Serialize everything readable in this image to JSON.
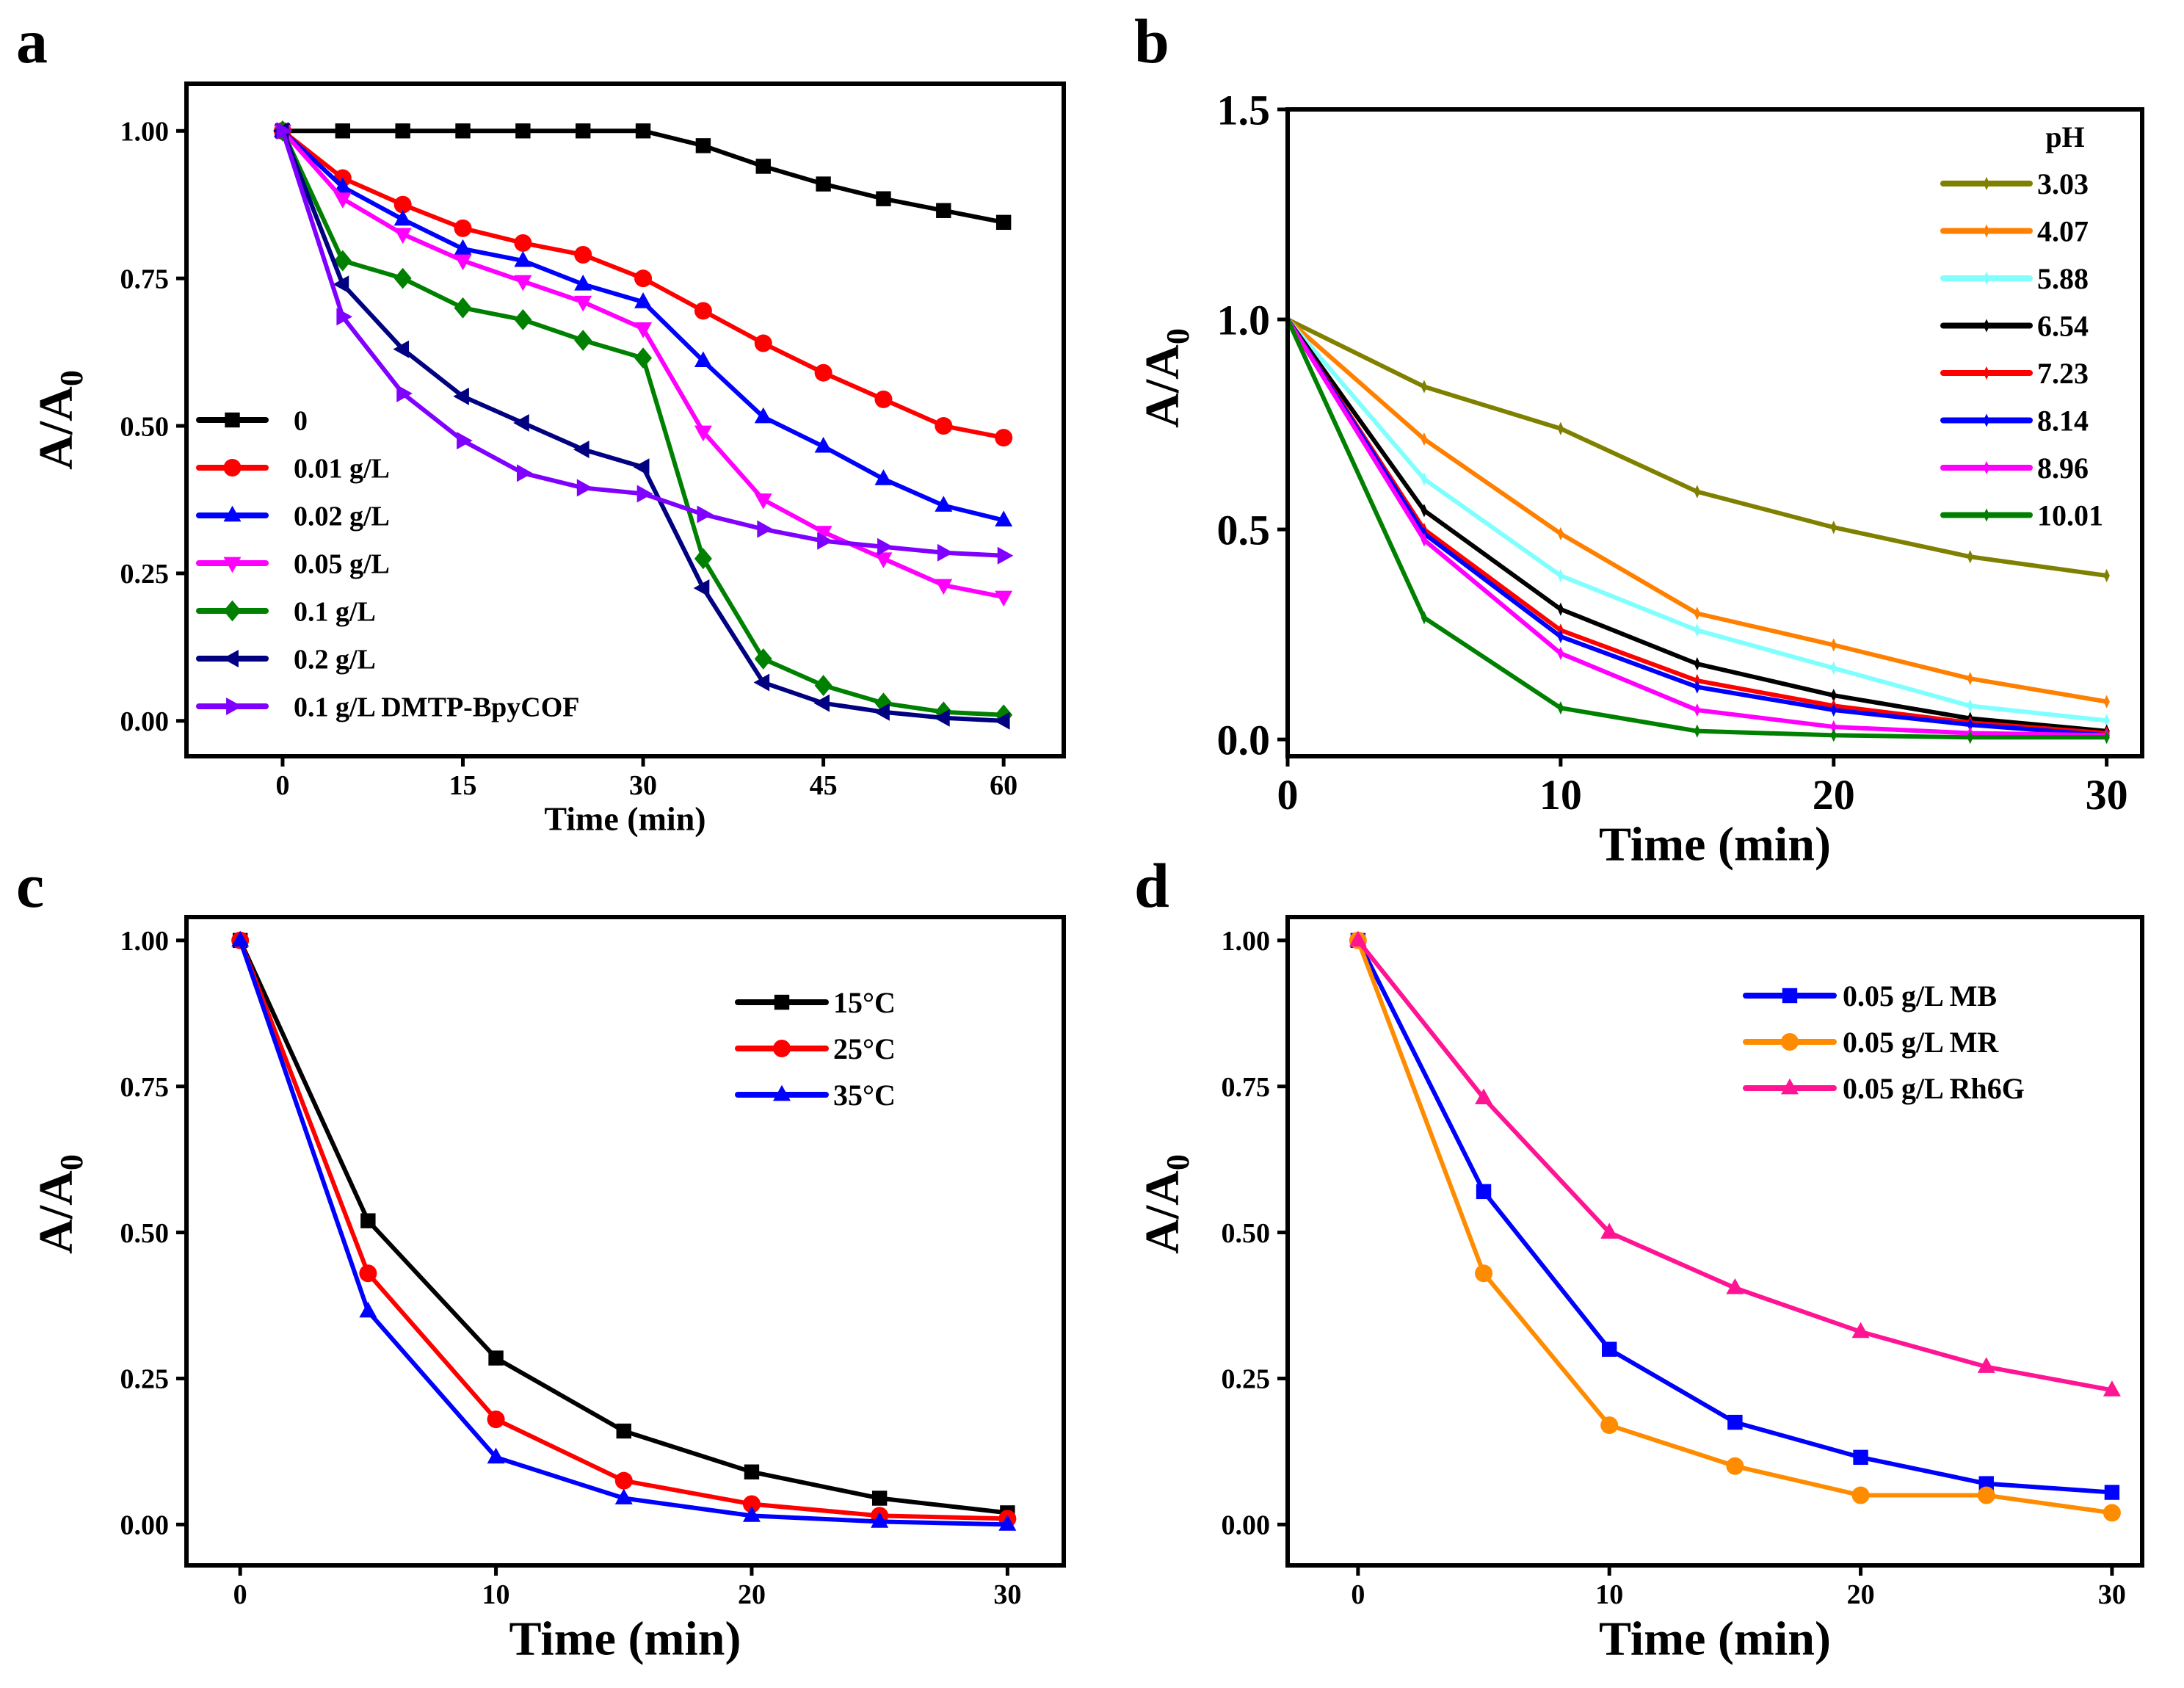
{
  "chart_data": [
    {
      "panel": "a",
      "type": "line",
      "xlabel": "Time (min)",
      "ylabel": "A/A",
      "ylabel_sub": "0",
      "xlim": [
        -8,
        65
      ],
      "ylim": [
        -0.06,
        1.08
      ],
      "xticks": [
        0,
        15,
        30,
        45,
        60
      ],
      "yticks": [
        "0.00",
        "0.25",
        "0.50",
        "0.75",
        "1.00"
      ],
      "legend_placement": "lower-left",
      "x": [
        0,
        5,
        10,
        15,
        20,
        25,
        30,
        35,
        40,
        45,
        50,
        55,
        60
      ],
      "series": [
        {
          "name": "0",
          "color": "#000000",
          "marker": "square",
          "values": [
            1,
            1,
            1,
            1,
            1,
            1,
            1,
            0.975,
            0.94,
            0.91,
            0.885,
            0.865,
            0.845
          ]
        },
        {
          "name": "0.01 g/L",
          "color": "#ff0000",
          "marker": "circle",
          "values": [
            1,
            0.92,
            0.875,
            0.835,
            0.81,
            0.79,
            0.75,
            0.695,
            0.64,
            0.59,
            0.545,
            0.5,
            0.48
          ]
        },
        {
          "name": "0.02 g/L",
          "color": "#0000ff",
          "marker": "triangle-up",
          "values": [
            1,
            0.905,
            0.85,
            0.8,
            0.78,
            0.74,
            0.71,
            0.61,
            0.515,
            0.465,
            0.41,
            0.365,
            0.34
          ]
        },
        {
          "name": "0.05 g/L",
          "color": "#ff00ff",
          "marker": "triangle-down",
          "values": [
            1,
            0.885,
            0.825,
            0.78,
            0.745,
            0.71,
            0.665,
            0.49,
            0.375,
            0.32,
            0.275,
            0.23,
            0.21
          ]
        },
        {
          "name": "0.1 g/L",
          "color": "#008000",
          "marker": "diamond",
          "values": [
            1,
            0.78,
            0.75,
            0.7,
            0.68,
            0.645,
            0.615,
            0.275,
            0.105,
            0.06,
            0.03,
            0.015,
            0.01
          ]
        },
        {
          "name": "0.2 g/L",
          "color": "#000080",
          "marker": "triangle-left",
          "values": [
            1,
            0.74,
            0.63,
            0.55,
            0.505,
            0.46,
            0.43,
            0.225,
            0.065,
            0.03,
            0.015,
            0.005,
            0.0
          ]
        },
        {
          "name": "0.1 g/L DMTP-BpyCOF",
          "color": "#8000ff",
          "marker": "triangle-right",
          "values": [
            1,
            0.685,
            0.555,
            0.475,
            0.42,
            0.395,
            0.385,
            0.35,
            0.325,
            0.305,
            0.295,
            0.285,
            0.28
          ]
        }
      ]
    },
    {
      "panel": "b",
      "type": "line",
      "xlabel": "Time (min)",
      "ylabel": "A/A",
      "ylabel_sub": "0",
      "xlim": [
        0,
        31.3
      ],
      "ylim": [
        -0.04,
        1.5
      ],
      "xticks": [
        0,
        10,
        20,
        30
      ],
      "yticks": [
        "0.0",
        "0.5",
        "1.0",
        "1.5"
      ],
      "legend_title": "pH",
      "legend_placement": "top-right",
      "x": [
        0,
        5,
        10,
        15,
        20,
        25,
        30
      ],
      "series": [
        {
          "name": "3.03",
          "color": "#808000",
          "marker": "tick",
          "values": [
            1,
            0.84,
            0.74,
            0.59,
            0.505,
            0.435,
            0.39
          ]
        },
        {
          "name": "4.07",
          "color": "#ff8000",
          "marker": "tick",
          "values": [
            1,
            0.715,
            0.49,
            0.3,
            0.225,
            0.145,
            0.09
          ]
        },
        {
          "name": "5.88",
          "color": "#80ffff",
          "marker": "tick",
          "values": [
            1,
            0.62,
            0.39,
            0.26,
            0.17,
            0.08,
            0.045
          ]
        },
        {
          "name": "6.54",
          "color": "#000000",
          "marker": "tick",
          "values": [
            1,
            0.545,
            0.31,
            0.18,
            0.105,
            0.05,
            0.02
          ]
        },
        {
          "name": "7.23",
          "color": "#ff0000",
          "marker": "tick",
          "values": [
            1,
            0.5,
            0.26,
            0.14,
            0.08,
            0.04,
            0.015
          ]
        },
        {
          "name": "8.14",
          "color": "#0000ff",
          "marker": "tick",
          "values": [
            1,
            0.49,
            0.245,
            0.125,
            0.07,
            0.035,
            0.01
          ]
        },
        {
          "name": "8.96",
          "color": "#ff00ff",
          "marker": "tick",
          "values": [
            1,
            0.475,
            0.205,
            0.07,
            0.03,
            0.015,
            0.01
          ]
        },
        {
          "name": "10.01",
          "color": "#008000",
          "marker": "tick",
          "values": [
            1,
            0.29,
            0.075,
            0.02,
            0.01,
            0.005,
            0.005
          ]
        }
      ]
    },
    {
      "panel": "c",
      "type": "line",
      "xlabel": "Time (min)",
      "ylabel": "A/A",
      "ylabel_sub": "0",
      "xlim": [
        -2.1,
        32.2
      ],
      "ylim": [
        -0.07,
        1.04
      ],
      "xticks": [
        0,
        10,
        20,
        30
      ],
      "yticks": [
        "0.00",
        "0.25",
        "0.50",
        "0.75",
        "1.00"
      ],
      "legend_placement": "top-right",
      "x": [
        0,
        5,
        10,
        15,
        20,
        25,
        30
      ],
      "series": [
        {
          "name": "15°C",
          "color": "#000000",
          "marker": "square",
          "values": [
            1,
            0.52,
            0.285,
            0.16,
            0.09,
            0.045,
            0.02
          ]
        },
        {
          "name": "25°C",
          "color": "#ff0000",
          "marker": "circle",
          "values": [
            1,
            0.43,
            0.18,
            0.075,
            0.035,
            0.015,
            0.01
          ]
        },
        {
          "name": "35°C",
          "color": "#0000ff",
          "marker": "triangle-up",
          "values": [
            1,
            0.365,
            0.115,
            0.045,
            0.015,
            0.005,
            0.0
          ]
        }
      ]
    },
    {
      "panel": "d",
      "type": "line",
      "xlabel": "Time (min)",
      "ylabel": "A/A",
      "ylabel_sub": "0",
      "xlim": [
        -2.8,
        31.2
      ],
      "ylim": [
        -0.07,
        1.04
      ],
      "xticks": [
        0,
        10,
        20,
        30
      ],
      "yticks": [
        "0.00",
        "0.25",
        "0.50",
        "0.75",
        "1.00"
      ],
      "legend_placement": "top-right",
      "x": [
        0,
        5,
        10,
        15,
        20,
        25,
        30
      ],
      "series": [
        {
          "name": "0.05 g/L MB",
          "color": "#0000ff",
          "marker": "square",
          "values": [
            1,
            0.57,
            0.3,
            0.175,
            0.115,
            0.07,
            0.055
          ]
        },
        {
          "name": "0.05 g/L MR",
          "color": "#ff8c00",
          "marker": "circle",
          "values": [
            1,
            0.43,
            0.17,
            0.1,
            0.05,
            0.05,
            0.02
          ]
        },
        {
          "name": "0.05 g/L Rh6G",
          "color": "#ff1493",
          "marker": "triangle-up",
          "values": [
            1,
            0.73,
            0.5,
            0.405,
            0.33,
            0.27,
            0.23
          ]
        }
      ]
    }
  ]
}
